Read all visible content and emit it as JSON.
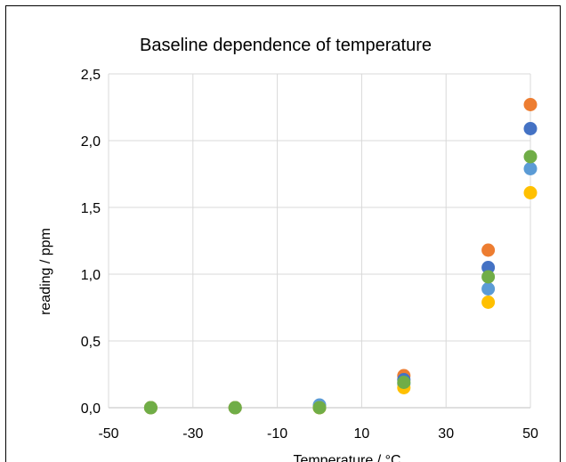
{
  "chart_data": {
    "type": "scatter",
    "title": "Baseline dependence of temperature",
    "xlabel": "Temperature / °C",
    "ylabel": "reading / ppm",
    "xlim": [
      -50,
      50
    ],
    "ylim": [
      0,
      2.5
    ],
    "x_ticks": [
      "-50",
      "-30",
      "-10",
      "10",
      "30",
      "50"
    ],
    "y_ticks": [
      "0,0",
      "0,5",
      "1,0",
      "1,5",
      "2,0",
      "2,5"
    ],
    "grid": true,
    "legend": "none",
    "series": [
      {
        "color": "#ED7D31",
        "points": [
          {
            "x": -40,
            "y": 0.0
          },
          {
            "x": -20,
            "y": 0.0
          },
          {
            "x": 0,
            "y": 0.0
          },
          {
            "x": 20,
            "y": 0.24
          },
          {
            "x": 40,
            "y": 1.18
          },
          {
            "x": 50,
            "y": 2.27
          }
        ]
      },
      {
        "color": "#4472C4",
        "points": [
          {
            "x": -40,
            "y": 0.0
          },
          {
            "x": -20,
            "y": 0.0
          },
          {
            "x": 0,
            "y": 0.01
          },
          {
            "x": 20,
            "y": 0.21
          },
          {
            "x": 40,
            "y": 1.05
          },
          {
            "x": 50,
            "y": 2.09
          }
        ]
      },
      {
        "color": "#5B9BD5",
        "points": [
          {
            "x": -40,
            "y": 0.0
          },
          {
            "x": -20,
            "y": 0.0
          },
          {
            "x": 0,
            "y": 0.02
          },
          {
            "x": 20,
            "y": 0.18
          },
          {
            "x": 40,
            "y": 0.89
          },
          {
            "x": 50,
            "y": 1.79
          }
        ]
      },
      {
        "color": "#FFC000",
        "points": [
          {
            "x": -40,
            "y": 0.0
          },
          {
            "x": -20,
            "y": 0.0
          },
          {
            "x": 0,
            "y": 0.0
          },
          {
            "x": 20,
            "y": 0.15
          },
          {
            "x": 40,
            "y": 0.79
          },
          {
            "x": 50,
            "y": 1.61
          }
        ]
      },
      {
        "color": "#70AD47",
        "points": [
          {
            "x": -40,
            "y": 0.0
          },
          {
            "x": -20,
            "y": 0.0
          },
          {
            "x": 0,
            "y": 0.0
          },
          {
            "x": 20,
            "y": 0.19
          },
          {
            "x": 40,
            "y": 0.98
          },
          {
            "x": 50,
            "y": 1.88
          }
        ]
      }
    ]
  }
}
